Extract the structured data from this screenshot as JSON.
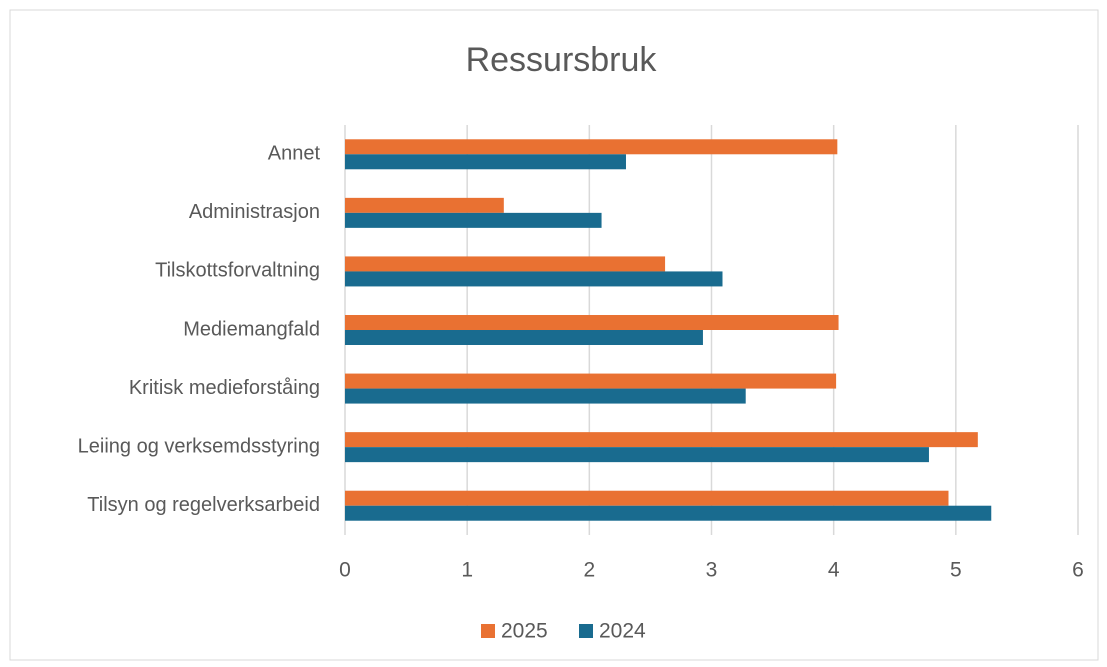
{
  "chart_data": {
    "type": "hbar",
    "title": "Ressursbruk",
    "categories": [
      "Annet",
      "Administrasjon",
      "Tilskottsforvaltning",
      "Mediemangfald",
      "Kritisk medieforståing",
      "Leiing og verksemdsstyring",
      "Tilsyn og regelverksarbeid"
    ],
    "series": [
      {
        "name": "2025",
        "color": "#e97132",
        "values": [
          4.03,
          1.3,
          2.62,
          4.04,
          4.02,
          5.18,
          4.94
        ]
      },
      {
        "name": "2024",
        "color": "#196b8f",
        "values": [
          2.3,
          2.1,
          3.09,
          2.93,
          3.28,
          4.78,
          5.29
        ]
      }
    ],
    "xlim": [
      0,
      6
    ],
    "xticks": [
      0,
      1,
      2,
      3,
      4,
      5,
      6
    ],
    "grid": true,
    "legend": "bottom"
  }
}
